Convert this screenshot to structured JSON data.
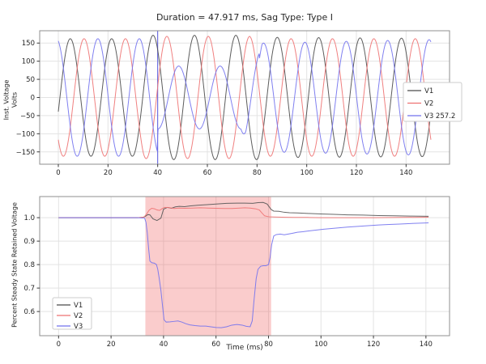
{
  "figure": {
    "bg": "#ffffff"
  },
  "chart_data": [
    {
      "type": "line",
      "title": "Duration = 47.917 ms, Sag Type: Type I",
      "ylabel_lines": [
        "Inst. Voltage",
        "Volts"
      ],
      "xlabel": "",
      "xlim": [
        -7.5,
        157.5
      ],
      "ylim": [
        -184,
        184
      ],
      "grid": true,
      "xticks": {
        "values": [
          0,
          20,
          40,
          60,
          80,
          100,
          120,
          140
        ],
        "labels": [
          "0",
          "20",
          "40",
          "60",
          "80",
          "100",
          "120",
          "140"
        ]
      },
      "yticks": {
        "values": [
          150,
          100,
          50,
          0,
          -50,
          -100,
          -150
        ],
        "labels": [
          "150",
          "100",
          "50",
          "0",
          "−50",
          "−100",
          "−150"
        ]
      },
      "legend": {
        "position": "center-right",
        "items": [
          {
            "label": "V1",
            "color": "#4a4a4a"
          },
          {
            "label": "V2",
            "color": "#ee7272"
          },
          {
            "label": "V3 257.2",
            "color": "#7272ee"
          }
        ]
      },
      "vline": {
        "x": 40,
        "color": "#5a5ae0"
      },
      "signal": {
        "freq_hz": 60,
        "amplitude_v": 162,
        "t_range_ms": [
          0,
          150
        ],
        "phases_deg": [
          -14,
          -134,
          106
        ],
        "envelopes": [
          [
            [
              0,
              1
            ],
            [
              33,
              1
            ],
            [
              34.2,
              1.058
            ],
            [
              80.5,
              1.058
            ],
            [
              82,
              1.025
            ],
            [
              150,
              1.006
            ]
          ],
          [
            [
              0,
              1
            ],
            [
              33,
              1
            ],
            [
              34.2,
              1.04
            ],
            [
              77,
              1.04
            ],
            [
              79.5,
              1.0
            ],
            [
              150,
              1.0
            ]
          ],
          [
            [
              0,
              1
            ],
            [
              39.85,
              1
            ],
            [
              40.05,
              0.535
            ],
            [
              73.5,
              0.535
            ],
            [
              75.5,
              0.8
            ],
            [
              80.9,
              0.8
            ],
            [
              82,
              0.925
            ],
            [
              141,
              0.978
            ],
            [
              150,
              0.984
            ]
          ]
        ],
        "v3_phase_shift": {
          "window_ms": [
            40,
            81
          ],
          "degrees": 17.2
        }
      }
    },
    {
      "type": "line",
      "title": "",
      "ylabel": "Percent Steady State Retained Voltage",
      "xlabel": "Time (ms)",
      "xlim": [
        -7.2,
        149
      ],
      "ylim": [
        0.497,
        1.09
      ],
      "grid": true,
      "xticks": {
        "values": [
          0,
          20,
          40,
          60,
          80,
          100,
          120,
          140
        ],
        "labels": [
          "0",
          "20",
          "40",
          "60",
          "80",
          "100",
          "120",
          "140"
        ]
      },
      "yticks": {
        "values": [
          1.0,
          0.9,
          0.8,
          0.7,
          0.6
        ],
        "labels": [
          "1.0",
          "0.9",
          "0.8",
          "0.7",
          "0.6"
        ]
      },
      "shaded_region": {
        "x0": 33.08,
        "x1": 81.0,
        "color": "#ee5555",
        "opacity": 0.3
      },
      "legend": {
        "position": "lower-left",
        "items": [
          {
            "label": "V1",
            "color": "#4a4a4a"
          },
          {
            "label": "V2",
            "color": "#ee7272"
          },
          {
            "label": "V3",
            "color": "#7272ee"
          }
        ]
      },
      "series": [
        {
          "name": "V1",
          "color": "#565656",
          "points": [
            [
              0,
              1
            ],
            [
              15,
              1
            ],
            [
              30,
              1
            ],
            [
              32,
              1.001
            ],
            [
              33,
              1.005
            ],
            [
              34,
              1.013
            ],
            [
              34.8,
              1.012
            ],
            [
              36,
              0.995
            ],
            [
              37.5,
              0.988
            ],
            [
              39,
              0.998
            ],
            [
              40,
              1.036
            ],
            [
              41.5,
              1.044
            ],
            [
              43,
              1.04
            ],
            [
              44.5,
              1.046
            ],
            [
              46,
              1.048
            ],
            [
              48,
              1.047
            ],
            [
              50,
              1.05
            ],
            [
              53,
              1.053
            ],
            [
              56,
              1.055
            ],
            [
              60,
              1.058
            ],
            [
              64,
              1.061
            ],
            [
              68,
              1.062
            ],
            [
              71,
              1.062
            ],
            [
              74,
              1.061
            ],
            [
              76,
              1.064
            ],
            [
              78,
              1.065
            ],
            [
              79.5,
              1.058
            ],
            [
              81,
              1.035
            ],
            [
              82,
              1.028
            ],
            [
              84,
              1.027
            ],
            [
              86,
              1.023
            ],
            [
              88,
              1.021
            ],
            [
              91,
              1.02
            ],
            [
              95,
              1.018
            ],
            [
              100,
              1.016
            ],
            [
              105,
              1.014
            ],
            [
              110,
              1.012
            ],
            [
              116,
              1.011
            ],
            [
              122,
              1.009
            ],
            [
              128,
              1.008
            ],
            [
              134,
              1.007
            ],
            [
              141,
              1.006
            ]
          ]
        },
        {
          "name": "V2",
          "color": "#ee7272",
          "points": [
            [
              0,
              1
            ],
            [
              15,
              1
            ],
            [
              30,
              1
            ],
            [
              32.5,
              1.002
            ],
            [
              33.5,
              1.015
            ],
            [
              34.5,
              1.032
            ],
            [
              35.5,
              1.04
            ],
            [
              36.5,
              1.038
            ],
            [
              37.5,
              1.033
            ],
            [
              38.5,
              1.031
            ],
            [
              39.5,
              1.039
            ],
            [
              40.5,
              1.044
            ],
            [
              42,
              1.043
            ],
            [
              44,
              1.039
            ],
            [
              46,
              1.041
            ],
            [
              48,
              1.04
            ],
            [
              51,
              1.041
            ],
            [
              54,
              1.042
            ],
            [
              57,
              1.041
            ],
            [
              60,
              1.04
            ],
            [
              63,
              1.039
            ],
            [
              66,
              1.039
            ],
            [
              69,
              1.041
            ],
            [
              71,
              1.042
            ],
            [
              73,
              1.041
            ],
            [
              75,
              1.038
            ],
            [
              76.5,
              1.033
            ],
            [
              77.5,
              1.02
            ],
            [
              78.5,
              1.008
            ],
            [
              80,
              1.004
            ],
            [
              82,
              1.003
            ],
            [
              85,
              1.002
            ],
            [
              90,
              1.001
            ],
            [
              95,
              1.001
            ],
            [
              100,
              1.0
            ],
            [
              110,
              1.0
            ],
            [
              120,
              1.0
            ],
            [
              130,
              1.001
            ],
            [
              141,
              1.002
            ]
          ]
        },
        {
          "name": "V3",
          "color": "#7272ee",
          "points": [
            [
              0,
              1
            ],
            [
              15,
              1
            ],
            [
              30,
              1
            ],
            [
              32.8,
              0.998
            ],
            [
              33.3,
              0.98
            ],
            [
              33.8,
              0.935
            ],
            [
              34.3,
              0.87
            ],
            [
              34.8,
              0.815
            ],
            [
              35.5,
              0.808
            ],
            [
              36.5,
              0.806
            ],
            [
              37.3,
              0.8
            ],
            [
              37.8,
              0.78
            ],
            [
              38.3,
              0.745
            ],
            [
              39,
              0.69
            ],
            [
              39.7,
              0.615
            ],
            [
              40.2,
              0.565
            ],
            [
              41,
              0.555
            ],
            [
              42.5,
              0.556
            ],
            [
              44,
              0.558
            ],
            [
              45.5,
              0.56
            ],
            [
              47,
              0.555
            ],
            [
              48.5,
              0.548
            ],
            [
              50,
              0.543
            ],
            [
              52,
              0.54
            ],
            [
              54,
              0.538
            ],
            [
              56,
              0.538
            ],
            [
              58,
              0.535
            ],
            [
              60,
              0.532
            ],
            [
              62,
              0.531
            ],
            [
              64,
              0.535
            ],
            [
              66,
              0.542
            ],
            [
              68,
              0.545
            ],
            [
              70,
              0.542
            ],
            [
              71.5,
              0.537
            ],
            [
              73,
              0.535
            ],
            [
              73.8,
              0.56
            ],
            [
              74.5,
              0.65
            ],
            [
              75.3,
              0.74
            ],
            [
              76,
              0.78
            ],
            [
              77,
              0.793
            ],
            [
              78,
              0.795
            ],
            [
              79,
              0.795
            ],
            [
              80,
              0.8
            ],
            [
              80.6,
              0.83
            ],
            [
              81.2,
              0.885
            ],
            [
              82,
              0.922
            ],
            [
              83,
              0.928
            ],
            [
              84.5,
              0.93
            ],
            [
              86,
              0.927
            ],
            [
              87.5,
              0.93
            ],
            [
              89,
              0.933
            ],
            [
              91,
              0.938
            ],
            [
              93,
              0.94
            ],
            [
              95,
              0.943
            ],
            [
              98,
              0.947
            ],
            [
              101,
              0.951
            ],
            [
              104,
              0.954
            ],
            [
              107,
              0.957
            ],
            [
              110,
              0.96
            ],
            [
              114,
              0.963
            ],
            [
              118,
              0.966
            ],
            [
              122,
              0.969
            ],
            [
              126,
              0.971
            ],
            [
              130,
              0.973
            ],
            [
              134,
              0.975
            ],
            [
              141,
              0.978
            ]
          ]
        }
      ]
    }
  ],
  "style": {
    "grid_color": "#e3e3e3",
    "spine_color": "#8f8f8f",
    "tick_color": "#3a3a3a",
    "text_color": "#262626",
    "legend_border": "#cccccc",
    "legend_bg": "#ffffff"
  }
}
